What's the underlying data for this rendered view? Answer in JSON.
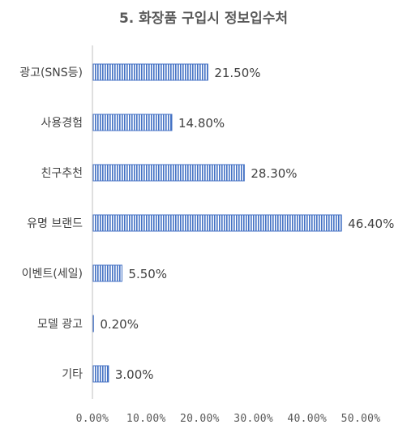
{
  "chart_data": {
    "type": "bar",
    "orientation": "horizontal",
    "title": "5. 화장품 구입시 정보입수처",
    "categories": [
      "광고(SNS등)",
      "사용경험",
      "친구추천",
      "유명 브랜드",
      "이벤트(세일)",
      "모델 광고",
      "기타"
    ],
    "values": [
      21.5,
      14.8,
      28.3,
      46.4,
      5.5,
      0.2,
      3.0
    ],
    "value_labels": [
      "21.50%",
      "14.80%",
      "28.30%",
      "46.40%",
      "5.50%",
      "0.20%",
      "3.00%"
    ],
    "xlim": [
      0,
      50
    ],
    "x_ticks": [
      0,
      10,
      20,
      30,
      40,
      50
    ],
    "x_tick_labels": [
      "0.00%",
      "10.00%",
      "20.00%",
      "30.00%",
      "40.00%",
      "50.00%"
    ],
    "grid": false,
    "legend": "none",
    "bar_color": "#4472c4",
    "bar_fill": "vertical-stripes"
  }
}
